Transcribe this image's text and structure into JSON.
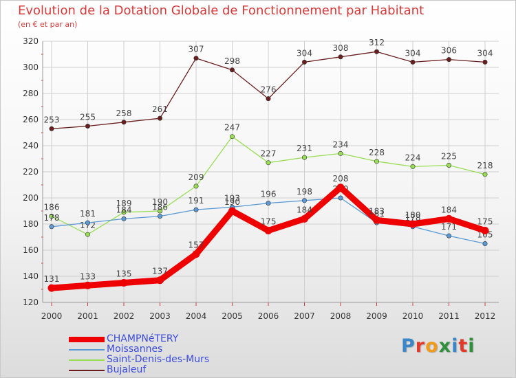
{
  "title": "Evolution de la Dotation Globale de Fonctionnement par Habitant",
  "subtitle": "(en € et par an)",
  "logo": {
    "text": "Proxiti",
    "letters": [
      {
        "char": "P",
        "color": "#3a86c8"
      },
      {
        "char": "r",
        "color": "#e23a2a"
      },
      {
        "char": "o",
        "color": "#f09b1b"
      },
      {
        "char": "x",
        "color": "#2f8f3a"
      },
      {
        "char": "i",
        "color": "#3a86c8"
      },
      {
        "char": "t",
        "color": "#e23a2a"
      },
      {
        "char": "i",
        "color": "#2f8f3a"
      }
    ]
  },
  "colors": {
    "axis": "#999999",
    "grid": "#cfcfcf",
    "tick_text": "#333333",
    "tick_mark": "#d43a3a",
    "legend_text": "#3b4bdc",
    "label_text": "#444444"
  },
  "chart_data": {
    "type": "line",
    "title": "Evolution de la Dotation Globale de Fonctionnement par Habitant",
    "subtitle": "(en € et par an)",
    "xlabel": "",
    "ylabel": "",
    "x": [
      "2000",
      "2001",
      "2002",
      "2003",
      "2004",
      "2005",
      "2006",
      "2007",
      "2008",
      "2009",
      "2010",
      "2011",
      "2012"
    ],
    "ylim": [
      120,
      320
    ],
    "yticks": [
      120,
      140,
      160,
      180,
      200,
      220,
      240,
      260,
      280,
      300,
      320
    ],
    "grid": true,
    "legend_position": "bottom-left",
    "series": [
      {
        "name": "CHAMPNéTERY",
        "color": "#ee0000",
        "emphasis": "thick",
        "values": [
          131,
          133,
          135,
          137,
          157,
          190,
          175,
          184,
          208,
          183,
          180,
          184,
          175
        ],
        "labels": [
          "131",
          "133",
          "135",
          "137",
          "157",
          "190",
          "175",
          "184",
          "208",
          "183",
          "180",
          "184",
          "175"
        ]
      },
      {
        "name": "Moissannes",
        "color": "#5b9ad5",
        "emphasis": "normal",
        "values": [
          178,
          181,
          184,
          186,
          191,
          193,
          196,
          198,
          200,
          181,
          178,
          171,
          165
        ],
        "labels": [
          "178",
          "181",
          "184",
          "186",
          "191",
          "193",
          "196",
          "198",
          "200",
          "181",
          "178",
          "171",
          "165"
        ]
      },
      {
        "name": "Saint-Denis-des-Murs",
        "color": "#99dd55",
        "emphasis": "normal",
        "values": [
          186,
          172,
          189,
          190,
          209,
          247,
          227,
          231,
          234,
          228,
          224,
          225,
          218
        ],
        "labels": [
          "186",
          "172",
          "189",
          "190",
          "209",
          "247",
          "227",
          "231",
          "234",
          "228",
          "224",
          "225",
          "218"
        ]
      },
      {
        "name": "Bujaleuf",
        "color": "#6b1e1e",
        "emphasis": "normal",
        "values": [
          253,
          255,
          258,
          261,
          307,
          298,
          276,
          304,
          308,
          312,
          304,
          306,
          304
        ],
        "labels": [
          "253",
          "255",
          "258",
          "261",
          "307",
          "298",
          "276",
          "304",
          "308",
          "312",
          "304",
          "306",
          "304"
        ]
      }
    ]
  }
}
